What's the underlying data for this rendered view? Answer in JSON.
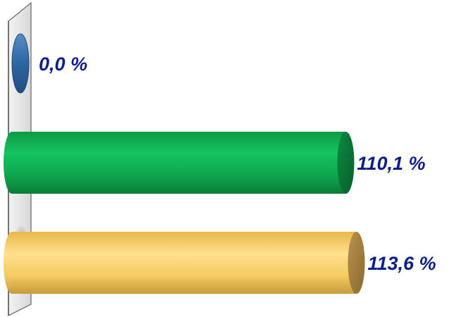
{
  "chart_data": {
    "type": "bar",
    "orientation": "horizontal",
    "categories": [
      "",
      "",
      ""
    ],
    "values": [
      0.0,
      110.1,
      113.6
    ],
    "data_labels": [
      "0,0 %",
      "110,1 %",
      "113,6 %"
    ],
    "title": "",
    "xlabel": "",
    "ylabel": "",
    "xlim": [
      0,
      140
    ],
    "grid": false,
    "legend": "none",
    "style": "3d-cylinder",
    "label_color": "#0b1e8c",
    "bar_colors": [
      "#2f69a8",
      "#0fae50",
      "#f7cf66"
    ]
  }
}
